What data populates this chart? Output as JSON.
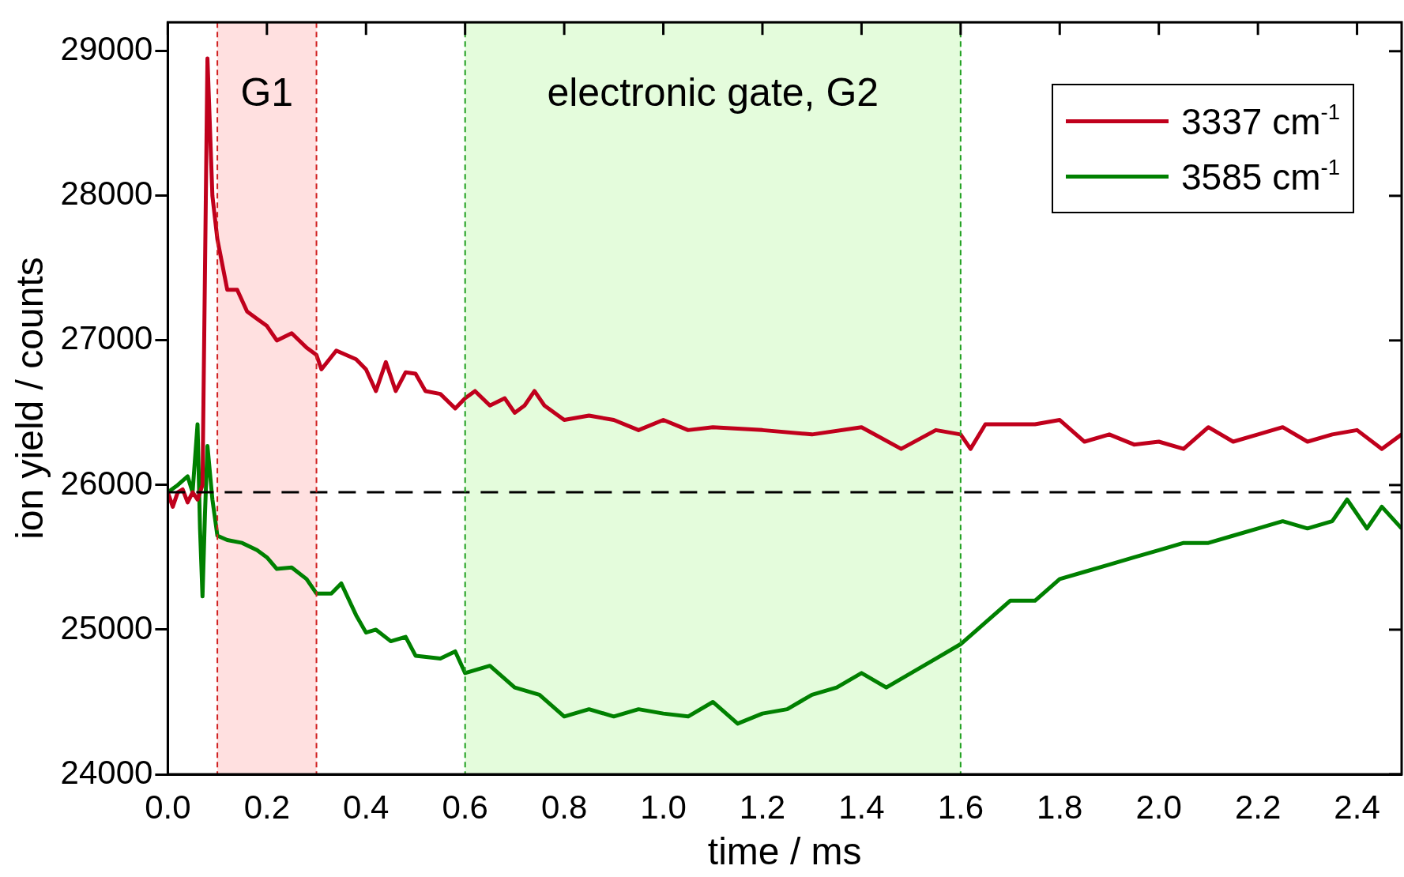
{
  "chart_data": {
    "type": "line",
    "xlabel": "time / ms",
    "ylabel": "ion yield / counts",
    "xlim": [
      0,
      2.49
    ],
    "xticks": [
      {
        "value": 0,
        "label": "0.0"
      },
      0.2,
      0.4,
      0.6,
      0.8,
      {
        "value": 1,
        "label": "1.0"
      },
      1.2,
      1.4,
      1.6,
      1.8,
      {
        "value": 2,
        "label": "2.0"
      },
      2.2,
      2.4
    ],
    "ylim": [
      24000,
      29200
    ],
    "yticks": [
      24000,
      25000,
      26000,
      27000,
      28000,
      29000
    ],
    "grid": false,
    "legend": "top right",
    "marker": "none",
    "line_style": "solid",
    "series": [
      {
        "name": "3337 cm$^{-1}$",
        "color": "#c0001c",
        "x": [
          0,
          0.01,
          0.02,
          0.03,
          0.04,
          0.05,
          0.06,
          0.07,
          0.08,
          0.09,
          0.1,
          0.12,
          0.14,
          0.16,
          0.18,
          0.2,
          0.22,
          0.25,
          0.28,
          0.3,
          0.31,
          0.34,
          0.38,
          0.4,
          0.42,
          0.44,
          0.46,
          0.48,
          0.5,
          0.52,
          0.55,
          0.58,
          0.6,
          0.62,
          0.65,
          0.68,
          0.7,
          0.72,
          0.74,
          0.76,
          0.8,
          0.85,
          0.9,
          0.95,
          1.0,
          1.05,
          1.1,
          1.2,
          1.3,
          1.4,
          1.48,
          1.55,
          1.6,
          1.62,
          1.65,
          1.75,
          1.8,
          1.85,
          1.9,
          1.95,
          2.0,
          2.05,
          2.1,
          2.15,
          2.2,
          2.25,
          2.3,
          2.35,
          2.4,
          2.45,
          2.49
        ],
        "values": [
          25950,
          25850,
          25950,
          25970,
          25880,
          25950,
          25900,
          26000,
          28950,
          28000,
          27700,
          27350,
          27350,
          27200,
          27150,
          27100,
          27000,
          27050,
          26950,
          26900,
          26800,
          26930,
          26870,
          26800,
          26650,
          26850,
          26650,
          26780,
          26770,
          26650,
          26630,
          26530,
          26600,
          26650,
          26550,
          26600,
          26500,
          26550,
          26650,
          26550,
          26450,
          26480,
          26450,
          26380,
          26450,
          26380,
          26400,
          26380,
          26350,
          26400,
          26250,
          26380,
          26350,
          26250,
          26420,
          26420,
          26450,
          26300,
          26350,
          26280,
          26300,
          26250,
          26400,
          26300,
          26350,
          26400,
          26300,
          26350,
          26380,
          26250,
          26350
        ]
      },
      {
        "name": "3585 cm$^{-1}$",
        "color": "#008000",
        "x": [
          0,
          0.02,
          0.04,
          0.05,
          0.06,
          0.065,
          0.07,
          0.075,
          0.08,
          0.09,
          0.1,
          0.12,
          0.15,
          0.18,
          0.2,
          0.22,
          0.25,
          0.28,
          0.3,
          0.33,
          0.35,
          0.38,
          0.4,
          0.42,
          0.45,
          0.48,
          0.5,
          0.55,
          0.58,
          0.6,
          0.65,
          0.7,
          0.75,
          0.8,
          0.85,
          0.9,
          0.95,
          1.0,
          1.05,
          1.1,
          1.15,
          1.2,
          1.25,
          1.3,
          1.35,
          1.4,
          1.45,
          1.5,
          1.55,
          1.6,
          1.65,
          1.7,
          1.75,
          1.8,
          1.85,
          1.9,
          1.95,
          2.0,
          2.05,
          2.1,
          2.15,
          2.2,
          2.25,
          2.3,
          2.35,
          2.38,
          2.42,
          2.45,
          2.49
        ],
        "values": [
          25950,
          26000,
          26060,
          25950,
          26420,
          25700,
          25230,
          25800,
          26270,
          25900,
          25650,
          25620,
          25600,
          25550,
          25500,
          25420,
          25430,
          25350,
          25250,
          25250,
          25320,
          25100,
          24980,
          25000,
          24920,
          24950,
          24820,
          24800,
          24850,
          24700,
          24750,
          24600,
          24550,
          24400,
          24450,
          24400,
          24450,
          24420,
          24400,
          24500,
          24350,
          24420,
          24450,
          24550,
          24600,
          24700,
          24600,
          24700,
          24800,
          24900,
          25050,
          25200,
          25200,
          25350,
          25400,
          25450,
          25500,
          25550,
          25600,
          25600,
          25650,
          25700,
          25750,
          25700,
          25750,
          25900,
          25700,
          25850,
          25700
        ]
      }
    ],
    "ref_lines": [
      {
        "axis": "y",
        "value": 25950,
        "color": "#000000",
        "line_style": "dashed"
      },
      {
        "axis": "x",
        "value": 0.1,
        "color": "#d02020",
        "line_style": "dotted"
      },
      {
        "axis": "x",
        "value": 0.3,
        "color": "#d02020",
        "line_style": "dotted"
      },
      {
        "axis": "x",
        "value": 0.6,
        "color": "#20a020",
        "line_style": "dotted"
      },
      {
        "axis": "x",
        "value": 1.6,
        "color": "#20a020",
        "line_style": "dotted"
      }
    ],
    "bands": [
      {
        "axis": "x",
        "from": 0.1,
        "to": 0.3,
        "label": "G1",
        "color": "#ffe0e0"
      },
      {
        "axis": "x",
        "from": 0.6,
        "to": 1.6,
        "label": "electronic gate, G2",
        "color": "#e4fcdc"
      }
    ]
  }
}
